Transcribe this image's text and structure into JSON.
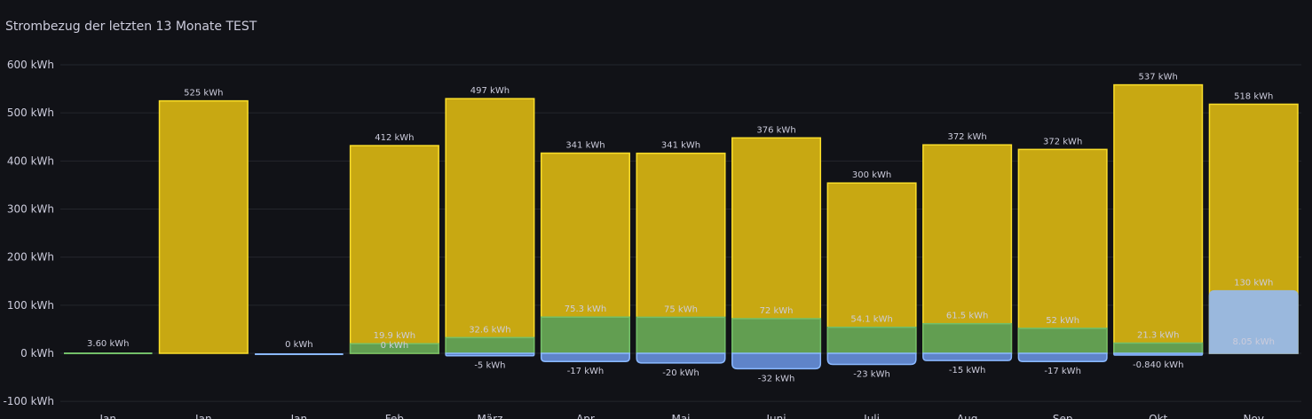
{
  "panel": {
    "title": "Strombezug der letzten 13 Monate TEST"
  },
  "chart_data": {
    "type": "bar",
    "title": "Strombezug der letzten 13 Monate TEST",
    "unit": "kWh",
    "ylim": [
      -100,
      600
    ],
    "yticks": [
      "600 kWh",
      "500 kWh",
      "400 kWh",
      "300 kWh",
      "200 kWh",
      "100 kWh",
      "0 kWh",
      "-100 kWh"
    ],
    "grid": true,
    "categories": [
      "Jan",
      "Jan",
      "Jan",
      "Feb",
      "März",
      "Apr",
      "Mai",
      "Juni",
      "Juli",
      "Aug",
      "Sep",
      "Okt",
      "Nov"
    ],
    "colors": {
      "yellow_fill": "#c8a812",
      "yellow_line": "#fade2a",
      "green_fill": "#629e51",
      "green_line": "#73bf69",
      "blue_fill": "#5f84c9",
      "blue_line": "#8ab8ff",
      "lightblue_fill": "#9ab8dd"
    },
    "bars": [
      {
        "total": null,
        "total_label": "",
        "green": 3.6,
        "green_label": "3.60 kWh",
        "blue": null,
        "blue_label": ""
      },
      {
        "total": 525,
        "total_label": "525 kWh",
        "green": null,
        "green_label": "",
        "blue": null,
        "blue_label": ""
      },
      {
        "total": null,
        "total_label": "",
        "green": null,
        "green_label": "",
        "blue": 0,
        "blue_label": "0 kWh"
      },
      {
        "total": 412,
        "total_label": "412 kWh",
        "green": 19.9,
        "green_label": "19.9 kWh",
        "green_label2": "0 kWh",
        "blue": null,
        "blue_label": ""
      },
      {
        "total": 497,
        "total_label": "497 kWh",
        "green": 32.6,
        "green_label": "32.6 kWh",
        "blue": -5,
        "blue_label": "-5 kWh"
      },
      {
        "total": 341,
        "total_label": "341 kWh",
        "green": 75.3,
        "green_label": "75.3 kWh",
        "blue": -17,
        "blue_label": "-17 kWh"
      },
      {
        "total": 341,
        "total_label": "341 kWh",
        "green": 75,
        "green_label": "75 kWh",
        "blue": -20,
        "blue_label": "-20 kWh"
      },
      {
        "total": 376,
        "total_label": "376 kWh",
        "green": 72,
        "green_label": "72 kWh",
        "blue": -32,
        "blue_label": "-32 kWh"
      },
      {
        "total": 300,
        "total_label": "300 kWh",
        "green": 54.1,
        "green_label": "54.1 kWh",
        "blue": -23,
        "blue_label": "-23 kWh"
      },
      {
        "total": 372,
        "total_label": "372 kWh",
        "green": 61.5,
        "green_label": "61.5 kWh",
        "blue": -15,
        "blue_label": "-15 kWh"
      },
      {
        "total": 372,
        "total_label": "372 kWh",
        "green": 52,
        "green_label": "52 kWh",
        "blue": -17,
        "blue_label": "-17 kWh"
      },
      {
        "total": 537,
        "total_label": "537 kWh",
        "green": 21.3,
        "green_label": "21.3 kWh",
        "blue": -0.84,
        "blue_label": "-0.840 kWh"
      },
      {
        "total": 518,
        "total_label": "518 kWh",
        "green": null,
        "green_label": "",
        "blue": null,
        "blue_label": "",
        "lightblue": 130,
        "lightblue_label": "130 kWh",
        "lightblue_inner_label": "8.05 kWh"
      }
    ]
  }
}
